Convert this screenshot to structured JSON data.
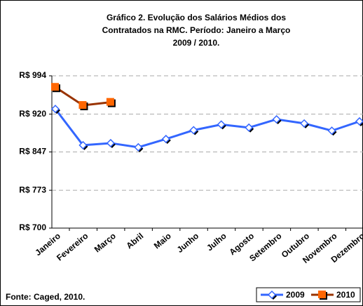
{
  "chart_data": {
    "type": "line",
    "title": [
      "Gráfico 2. Evolução dos Salários Médios dos",
      "Contratados na RMC.  Período: Janeiro a Março",
      "2009 / 2010."
    ],
    "categories": [
      "Janeiro",
      "Fevereiro",
      "Março",
      "Abril",
      "Maio",
      "Junho",
      "Julho",
      "Agosto",
      "Setembro",
      "Outubro",
      "Novembro",
      "Dezembro"
    ],
    "series": [
      {
        "name": "2009",
        "color": "#3366ff",
        "marker_color": "#3366ff",
        "marker": "diamond",
        "values": [
          930,
          860,
          864,
          856,
          872,
          889,
          900,
          894,
          910,
          902,
          888,
          906
        ]
      },
      {
        "name": "2010",
        "color": "#993300",
        "marker_color": "#ff6600",
        "marker": "square",
        "values": [
          972,
          937,
          943,
          null,
          null,
          null,
          null,
          null,
          null,
          null,
          null,
          null
        ]
      }
    ],
    "ylim": [
      700,
      994
    ],
    "yticks": [
      {
        "value": 700,
        "label": "R$ 700"
      },
      {
        "value": 773,
        "label": "R$ 773"
      },
      {
        "value": 847,
        "label": "R$ 847"
      },
      {
        "value": 920,
        "label": "R$ 920"
      },
      {
        "value": 994,
        "label": "R$ 994"
      }
    ],
    "grid": true,
    "legend": "bottom-right",
    "source": "Fonte: Caged,  2010."
  }
}
